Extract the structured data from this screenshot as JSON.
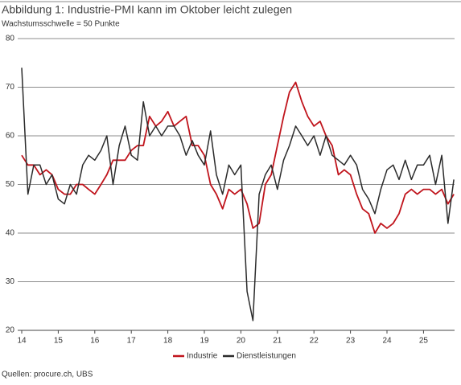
{
  "chart_data": {
    "type": "line",
    "title": "Abbildung 1: Industrie-PMI kann im Oktober leicht zulegen",
    "subtitle": "Wachstumsschwelle = 50 Punkte",
    "source": "Quellen: procure.ch, UBS",
    "x": [
      14,
      14.17,
      14.33,
      14.5,
      14.67,
      14.83,
      15,
      15.17,
      15.33,
      15.5,
      15.67,
      15.83,
      16,
      16.17,
      16.33,
      16.5,
      16.67,
      16.83,
      17,
      17.17,
      17.33,
      17.5,
      17.67,
      17.83,
      18,
      18.17,
      18.33,
      18.5,
      18.67,
      18.83,
      19,
      19.17,
      19.33,
      19.5,
      19.67,
      19.83,
      20,
      20.17,
      20.33,
      20.5,
      20.67,
      20.83,
      21,
      21.17,
      21.33,
      21.5,
      21.67,
      21.83,
      22,
      22.17,
      22.33,
      22.5,
      22.67,
      22.83,
      23,
      23.17,
      23.33,
      23.5,
      23.67,
      23.83,
      24,
      24.17,
      24.33,
      24.5,
      24.67,
      24.83,
      25,
      25.17,
      25.33,
      25.5,
      25.67,
      25.83
    ],
    "series": [
      {
        "name": "Industrie",
        "color": "#c0141c",
        "values": [
          56,
          54,
          54,
          52,
          53,
          52,
          49,
          48,
          48,
          50,
          50,
          49,
          48,
          50,
          52,
          55,
          55,
          55,
          57,
          58,
          58,
          64,
          62,
          63,
          65,
          62,
          63,
          64,
          58,
          58,
          56,
          50,
          48,
          45,
          49,
          48,
          49,
          46,
          41,
          42,
          50,
          52,
          58,
          64,
          69,
          71,
          67,
          64,
          62,
          63,
          60,
          58,
          52,
          53,
          52,
          48,
          45,
          44,
          40,
          42,
          41,
          42,
          44,
          48,
          49,
          48,
          49,
          49,
          48,
          49,
          46,
          48
        ]
      },
      {
        "name": "Dienstleistungen",
        "color": "#2b2b2b",
        "values": [
          74,
          48,
          54,
          54,
          50,
          52,
          47,
          46,
          50,
          48,
          54,
          56,
          55,
          57,
          60,
          50,
          58,
          62,
          56,
          55,
          67,
          60,
          62,
          60,
          62,
          62,
          60,
          56,
          59,
          56,
          54,
          61,
          52,
          48,
          54,
          52,
          54,
          28,
          22,
          48,
          52,
          54,
          49,
          55,
          58,
          62,
          60,
          58,
          60,
          56,
          60,
          56,
          55,
          54,
          56,
          54,
          49,
          47,
          44,
          49,
          53,
          54,
          51,
          55,
          51,
          54,
          54,
          56,
          50,
          56,
          42,
          51
        ]
      }
    ],
    "xlim": [
      14,
      25.85
    ],
    "xticks": [
      14,
      15,
      16,
      17,
      18,
      19,
      20,
      21,
      22,
      23,
      24,
      25
    ],
    "ylim": [
      20,
      80
    ],
    "yticks": [
      20,
      30,
      40,
      50,
      60,
      70,
      80
    ],
    "grid": true
  }
}
